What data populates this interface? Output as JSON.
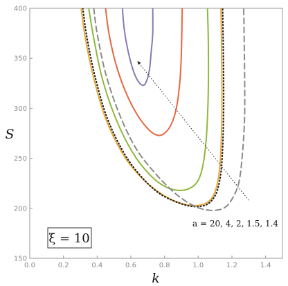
{
  "chart_data": {
    "type": "line",
    "xlabel": "k",
    "ylabel": "S",
    "xlim": [
      0.0,
      1.5
    ],
    "ylim": [
      150,
      400
    ],
    "x_ticks": [
      "0.0",
      "0.2",
      "0.4",
      "0.6",
      "0.8",
      "1.0",
      "1.2",
      "1.4"
    ],
    "y_ticks": [
      "150",
      "200",
      "250",
      "300",
      "350",
      "400"
    ],
    "grid": false,
    "annotation": {
      "text": "a = 20, 4, 2, 1.5, 1.4",
      "arrow_from": [
        1.3,
        208
      ],
      "arrow_to": [
        0.64,
        347
      ]
    },
    "box_label": "ξ = 10",
    "series": [
      {
        "color": "#e8a735",
        "style": "solid",
        "points": [
          [
            0.305,
            400
          ],
          [
            0.33,
            370
          ],
          [
            0.38,
            330
          ],
          [
            0.45,
            290
          ],
          [
            0.55,
            255
          ],
          [
            0.65,
            233
          ],
          [
            0.75,
            218
          ],
          [
            0.85,
            208
          ],
          [
            0.95,
            203
          ],
          [
            1.03,
            204
          ],
          [
            1.08,
            210
          ],
          [
            1.11,
            222
          ],
          [
            1.13,
            245
          ],
          [
            1.14,
            290
          ],
          [
            1.14,
            340
          ],
          [
            1.135,
            400
          ]
        ]
      },
      {
        "color": "#222222",
        "style": "dotted",
        "points": [
          [
            0.315,
            400
          ],
          [
            0.34,
            370
          ],
          [
            0.39,
            330
          ],
          [
            0.46,
            290
          ],
          [
            0.56,
            255
          ],
          [
            0.66,
            232
          ],
          [
            0.76,
            216
          ],
          [
            0.86,
            207
          ],
          [
            0.96,
            202
          ],
          [
            1.04,
            203
          ],
          [
            1.09,
            210
          ],
          [
            1.12,
            222
          ],
          [
            1.14,
            245
          ],
          [
            1.15,
            290
          ],
          [
            1.15,
            340
          ],
          [
            1.145,
            400
          ]
        ]
      },
      {
        "color": "#8fb83c",
        "style": "solid",
        "points": [
          [
            0.35,
            400
          ],
          [
            0.38,
            370
          ],
          [
            0.43,
            330
          ],
          [
            0.51,
            290
          ],
          [
            0.61,
            256
          ],
          [
            0.71,
            234
          ],
          [
            0.8,
            222
          ],
          [
            0.88,
            218
          ],
          [
            0.95,
            220
          ],
          [
            1.0,
            228
          ],
          [
            1.03,
            245
          ],
          [
            1.05,
            275
          ],
          [
            1.06,
            320
          ],
          [
            1.06,
            365
          ],
          [
            1.055,
            400
          ]
        ]
      },
      {
        "color": "#e8663f",
        "style": "solid",
        "points": [
          [
            0.45,
            400
          ],
          [
            0.47,
            375
          ],
          [
            0.51,
            345
          ],
          [
            0.57,
            316
          ],
          [
            0.64,
            293
          ],
          [
            0.71,
            278
          ],
          [
            0.76,
            273
          ],
          [
            0.8,
            275
          ],
          [
            0.84,
            284
          ],
          [
            0.87,
            300
          ],
          [
            0.89,
            325
          ],
          [
            0.9,
            355
          ],
          [
            0.905,
            400
          ]
        ]
      },
      {
        "color": "#8878b8",
        "style": "solid",
        "points": [
          [
            0.55,
            400
          ],
          [
            0.56,
            380
          ],
          [
            0.58,
            360
          ],
          [
            0.61,
            340
          ],
          [
            0.64,
            328
          ],
          [
            0.67,
            323
          ],
          [
            0.69,
            326
          ],
          [
            0.71,
            338
          ],
          [
            0.72,
            355
          ],
          [
            0.73,
            375
          ],
          [
            0.73,
            400
          ]
        ]
      },
      {
        "color": "#8a8a8a",
        "style": "dashed",
        "points": [
          [
            0.38,
            400
          ],
          [
            0.4,
            375
          ],
          [
            0.45,
            335
          ],
          [
            0.53,
            295
          ],
          [
            0.63,
            260
          ],
          [
            0.75,
            234
          ],
          [
            0.87,
            214
          ],
          [
            0.98,
            202
          ],
          [
            1.07,
            198
          ],
          [
            1.15,
            200
          ],
          [
            1.2,
            209
          ],
          [
            1.24,
            225
          ],
          [
            1.26,
            250
          ],
          [
            1.275,
            290
          ],
          [
            1.275,
            340
          ],
          [
            1.27,
            400
          ]
        ]
      }
    ]
  }
}
